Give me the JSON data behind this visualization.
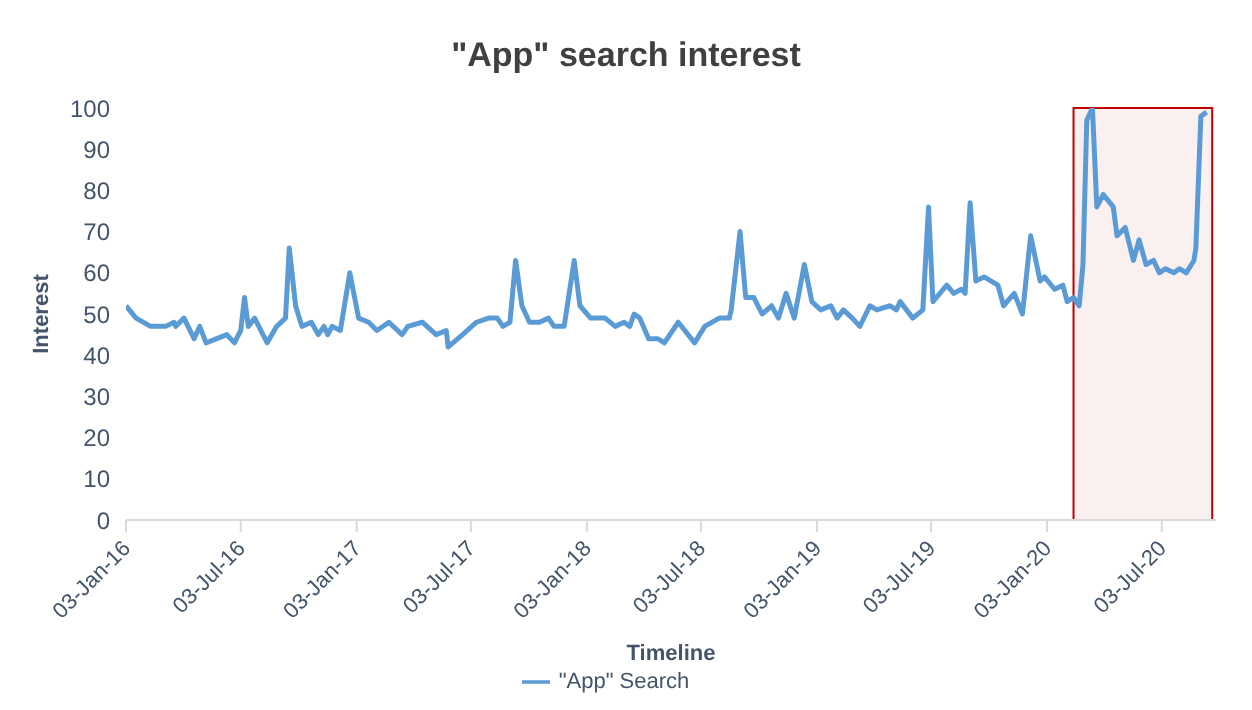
{
  "chart_data": {
    "type": "line",
    "title": "\"App\" search interest",
    "xlabel": "Timeline",
    "ylabel": "Interest",
    "x": [
      "2016-01-03",
      "2016-01-19",
      "2016-02-11",
      "2016-03-06",
      "2016-03-19",
      "2016-03-22",
      "2016-04-04",
      "2016-04-20",
      "2016-04-29",
      "2016-05-09",
      "2016-06-11",
      "2016-06-23",
      "2016-07-03",
      "2016-07-09",
      "2016-07-15",
      "2016-07-25",
      "2016-08-14",
      "2016-08-29",
      "2016-09-12",
      "2016-09-18",
      "2016-09-28",
      "2016-10-08",
      "2016-10-23",
      "2016-11-03",
      "2016-11-12",
      "2016-11-18",
      "2016-11-25",
      "2016-12-08",
      "2016-12-23",
      "2017-01-06",
      "2017-01-22",
      "2017-02-04",
      "2017-02-23",
      "2017-03-16",
      "2017-03-25",
      "2017-04-17",
      "2017-05-09",
      "2017-05-25",
      "2017-05-28",
      "2017-06-20",
      "2017-07-12",
      "2017-07-31",
      "2017-08-14",
      "2017-08-23",
      "2017-09-03",
      "2017-09-12",
      "2017-09-22",
      "2017-10-04",
      "2017-10-20",
      "2017-11-03",
      "2017-11-12",
      "2017-11-28",
      "2017-12-14",
      "2017-12-23",
      "2018-01-09",
      "2018-02-01",
      "2018-02-17",
      "2018-03-03",
      "2018-03-12",
      "2018-03-19",
      "2018-03-28",
      "2018-04-11",
      "2018-04-26",
      "2018-05-06",
      "2018-05-28",
      "2018-06-23",
      "2018-07-09",
      "2018-08-01",
      "2018-08-17",
      "2018-08-20",
      "2018-09-03",
      "2018-09-12",
      "2018-09-25",
      "2018-10-08",
      "2018-10-23",
      "2018-11-03",
      "2018-11-15",
      "2018-11-28",
      "2018-12-14",
      "2018-12-26",
      "2019-01-09",
      "2019-01-25",
      "2019-02-04",
      "2019-02-14",
      "2019-02-28",
      "2019-03-12",
      "2019-03-28",
      "2019-04-08",
      "2019-04-29",
      "2019-05-09",
      "2019-05-15",
      "2019-06-04",
      "2019-06-20",
      "2019-06-29",
      "2019-07-06",
      "2019-07-28",
      "2019-08-08",
      "2019-08-20",
      "2019-08-26",
      "2019-09-03",
      "2019-09-12",
      "2019-09-25",
      "2019-10-17",
      "2019-10-26",
      "2019-11-12",
      "2019-11-25",
      "2019-12-08",
      "2019-12-23",
      "2019-12-30",
      "2020-01-15",
      "2020-01-28",
      "2020-02-04",
      "2020-02-14",
      "2020-02-23",
      "2020-02-29",
      "2020-03-06",
      "2020-03-15",
      "2020-03-22",
      "2020-04-01",
      "2020-04-17",
      "2020-04-23",
      "2020-05-06",
      "2020-05-19",
      "2020-05-28",
      "2020-06-08",
      "2020-06-20",
      "2020-06-29",
      "2020-07-09",
      "2020-07-22",
      "2020-07-31",
      "2020-08-11",
      "2020-08-23",
      "2020-08-26",
      "2020-09-03",
      "2020-09-12"
    ],
    "series": [
      {
        "name": "\"App\" Search",
        "color": "#5b9bd5",
        "values": [
          52,
          49,
          47,
          47,
          48,
          47,
          49,
          44,
          47,
          43,
          45,
          43,
          46,
          54,
          47,
          49,
          43,
          47,
          49,
          66,
          52,
          47,
          48,
          45,
          47,
          45,
          47,
          46,
          60,
          49,
          48,
          46,
          48,
          45,
          47,
          48,
          45,
          46,
          42,
          45,
          48,
          49,
          49,
          47,
          48,
          63,
          52,
          48,
          48,
          49,
          47,
          47,
          63,
          52,
          49,
          49,
          47,
          48,
          47,
          50,
          49,
          44,
          44,
          43,
          48,
          43,
          47,
          49,
          49,
          51,
          70,
          54,
          54,
          50,
          52,
          49,
          55,
          49,
          62,
          53,
          51,
          52,
          49,
          51,
          49,
          47,
          52,
          51,
          52,
          51,
          53,
          49,
          51,
          76,
          53,
          57,
          55,
          56,
          55,
          77,
          58,
          59,
          57,
          52,
          55,
          50,
          69,
          58,
          59,
          56,
          57,
          53,
          54,
          52,
          62,
          97,
          100,
          76,
          79,
          76,
          69,
          71,
          63,
          68,
          62,
          63,
          60,
          61,
          60,
          61,
          60,
          63,
          66,
          98,
          99
        ]
      }
    ],
    "xlim": [
      "2016-01-03",
      "2020-09-27"
    ],
    "xticks": [
      {
        "value": "2016-01-03",
        "label": "03-Jan-16"
      },
      {
        "value": "2016-07-03",
        "label": "03-Jul-16"
      },
      {
        "value": "2017-01-03",
        "label": "03-Jan-17"
      },
      {
        "value": "2017-07-03",
        "label": "03-Jul-17"
      },
      {
        "value": "2018-01-03",
        "label": "03-Jan-18"
      },
      {
        "value": "2018-07-03",
        "label": "03-Jul-18"
      },
      {
        "value": "2019-01-03",
        "label": "03-Jan-19"
      },
      {
        "value": "2019-07-03",
        "label": "03-Jul-19"
      },
      {
        "value": "2020-01-03",
        "label": "03-Jan-20"
      },
      {
        "value": "2020-07-03",
        "label": "03-Jul-20"
      }
    ],
    "ylim": [
      0,
      100
    ],
    "yticks": [
      0,
      10,
      20,
      30,
      40,
      50,
      60,
      70,
      80,
      90,
      100
    ],
    "bands": [
      {
        "axis": "x",
        "from": "2020-02-14",
        "to": "2020-09-21",
        "color": "#c00000"
      }
    ],
    "legend": "bottom",
    "marker": "none",
    "line_style": "solid",
    "grid": false
  }
}
